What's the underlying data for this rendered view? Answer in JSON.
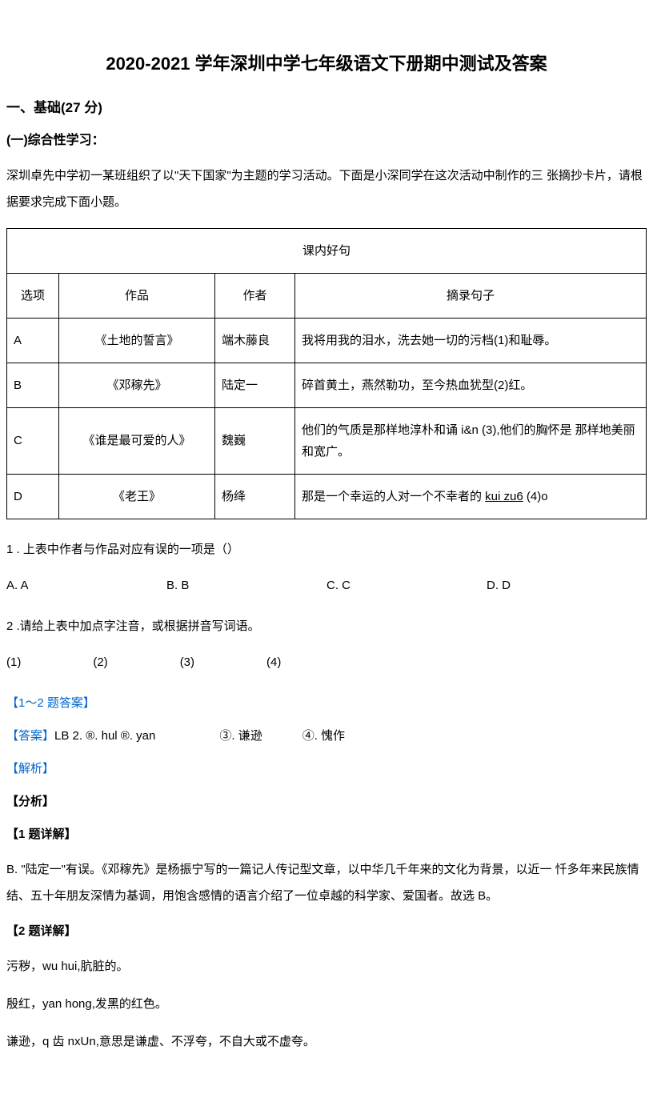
{
  "title": "2020-2021 学年深圳中学七年级语文下册期中测试及答案",
  "section1": {
    "header": "一、基础(27 分)",
    "subheader": "(一)综合性学习：",
    "intro": "深圳卓先中学初一某班组织了以\"天下国家\"为主题的学习活动。下面是小深同学在这次活动中制作的三 张摘抄卡片，请根据要求完成下面小题。"
  },
  "table": {
    "mainHeader": "课内好句",
    "headers": {
      "option": "选项",
      "work": "作品",
      "author": "作者",
      "sentence": "摘录句子"
    },
    "rows": [
      {
        "option": "A",
        "work": "《土地的誓言》",
        "author": "端木藤良",
        "sentence": "我将用我的泪水，洗去她一切的污档(1)和耻辱。"
      },
      {
        "option": "B",
        "work": "《邓稼先》",
        "author": "陆定一",
        "sentence": "碎首黄土，燕然勒功，至今热血犹型(2)红。"
      },
      {
        "option": "C",
        "work": "《谁是最可爱的人》",
        "author": "魏巍",
        "sentence": "他们的气质是那样地淳朴和诵 i&n (3),他们的胸怀是 那样地美丽和宽广。"
      },
      {
        "option": "D",
        "work": "《老王》",
        "author": "杨绛",
        "sentencePrefix": "那是一个幸运的人对一个不幸者的 ",
        "sentenceUnderline": "kui zu6",
        "sentenceSuffix": " (4)o"
      }
    ]
  },
  "question1": {
    "text": "1 . 上表中作者与作品对应有误的一项是（）",
    "options": {
      "a": "A. A",
      "b": "B. B",
      "c": "C. C",
      "d": "D. D"
    }
  },
  "question2": {
    "text": "2 .请给上表中加点字注音，或根据拼音写词语。",
    "blanks": {
      "b1": "(1)",
      "b2": "(2)",
      "b3": "(3)",
      "b4": "(4)"
    }
  },
  "answers": {
    "heading": "【1〜2 题答案】",
    "answerLabel": "【答案】",
    "answerContent": "LB 2.",
    "answerItems": {
      "i1": "®. hul ®. yan",
      "i2": "③. 谦逊",
      "i3": "④. 愧作"
    },
    "analysisLabel": "【解析】",
    "fenxi": "【分析】",
    "detail1Label": "【1 题详解】",
    "detail1Text": "B. \"陆定一\"有误。《邓稼先》是杨振宁写的一篇记人传记型文章，以中华几千年来的文化为背景，以近一 忏多年来民族情结、五十年朋友深情为基调，用饱含感情的语言介绍了一位卓越的科学家、爱国者。故选 B。",
    "detail2Label": "【2 题详解】",
    "detail2Lines": {
      "l1": "污秽，wu hui,肮脏的。",
      "l2": "殷红，yan hong,发黑的红色。",
      "l3": "谦逊，q 齿 nxUn,意思是谦虚、不浮夸，不自大或不虚夸。"
    }
  }
}
